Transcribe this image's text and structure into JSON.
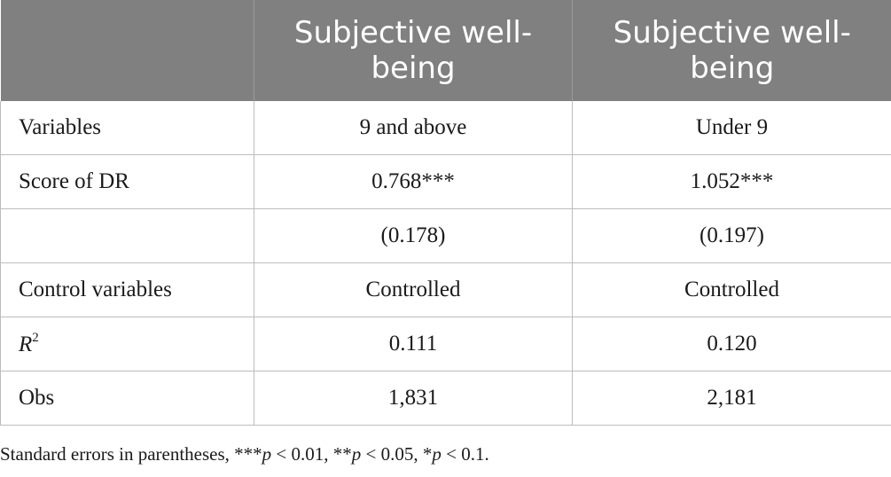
{
  "header": {
    "col1": "",
    "col2": "Subjective well-being",
    "col3": "Subjective well-being"
  },
  "rows": [
    {
      "label": "Variables",
      "v1": "9 and above",
      "v2": "Under 9"
    },
    {
      "label": "Score of DR",
      "v1": "0.768***",
      "v2": "1.052***"
    },
    {
      "label": "",
      "v1": "(0.178)",
      "v2": "(0.197)"
    },
    {
      "label": "Control variables",
      "v1": "Controlled",
      "v2": "Controlled"
    },
    {
      "label_base": "R",
      "label_sup": "2",
      "v1": "0.111",
      "v2": "0.120"
    },
    {
      "label": "Obs",
      "v1": "1,831",
      "v2": "2,181"
    }
  ],
  "note": {
    "part1": "Standard errors in parentheses, ***",
    "p1": "p",
    "part2": " < 0.01, **",
    "p2": "p",
    "part3": " < 0.05, *",
    "p3": "p",
    "part4": " < 0.1."
  }
}
